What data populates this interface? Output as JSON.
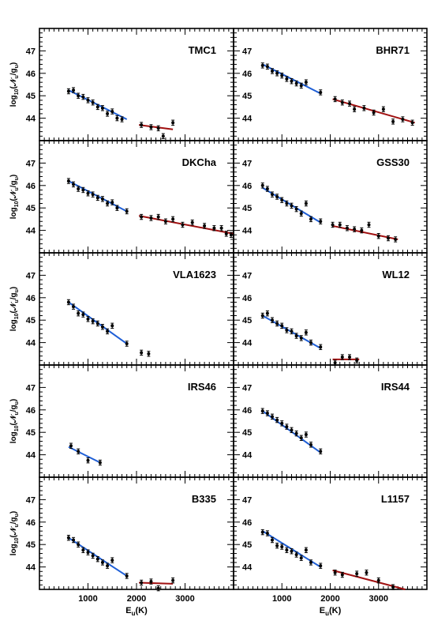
{
  "figure": {
    "ylabel_text": "log",
    "ylabel_sub": "10",
    "ylabel_rest": "(𝒩",
    "ylabel_u": "u",
    "ylabel_slash": "/g",
    "ylabel_u2": "u",
    "ylabel_close": ")",
    "xlabel_text": "E",
    "xlabel_sub": "u",
    "xlabel_rest": "(K)"
  },
  "colors": {
    "warm": "#1f5fd6",
    "hot": "#a01010",
    "axis": "#000000",
    "points": "#000000"
  },
  "chart_data": [
    {
      "type": "scatter",
      "title": "TMC1",
      "xlim": [
        0,
        4000
      ],
      "ylim": [
        43,
        48
      ],
      "yticks": [
        "44",
        "45",
        "46",
        "47"
      ],
      "xticks": [
        "1000",
        "2000",
        "3000"
      ],
      "points": [
        [
          600,
          45.2
        ],
        [
          700,
          45.25
        ],
        [
          800,
          45.0
        ],
        [
          900,
          44.95
        ],
        [
          1000,
          44.8
        ],
        [
          1100,
          44.7
        ],
        [
          1200,
          44.5
        ],
        [
          1300,
          44.45
        ],
        [
          1400,
          44.2
        ],
        [
          1500,
          44.3
        ],
        [
          1600,
          44.0
        ],
        [
          1700,
          43.95
        ],
        [
          2100,
          43.7
        ],
        [
          2300,
          43.6
        ],
        [
          2450,
          43.55
        ],
        [
          2550,
          43.2
        ],
        [
          2750,
          43.8
        ]
      ],
      "fits": [
        {
          "kind": "warm",
          "x": [
            600,
            1800
          ],
          "y": [
            45.25,
            43.95
          ]
        },
        {
          "kind": "hot",
          "x": [
            2050,
            2750
          ],
          "y": [
            43.7,
            43.5
          ]
        }
      ]
    },
    {
      "type": "scatter",
      "title": "BHR71",
      "xlim": [
        0,
        4000
      ],
      "ylim": [
        43,
        48
      ],
      "yticks": [
        "44",
        "45",
        "46",
        "47"
      ],
      "xticks": [
        "1000",
        "2000",
        "3000"
      ],
      "points": [
        [
          600,
          46.35
        ],
        [
          700,
          46.3
        ],
        [
          800,
          46.1
        ],
        [
          900,
          46.0
        ],
        [
          1000,
          45.9
        ],
        [
          1100,
          45.75
        ],
        [
          1200,
          45.65
        ],
        [
          1300,
          45.55
        ],
        [
          1400,
          45.45
        ],
        [
          1500,
          45.6
        ],
        [
          1800,
          45.15
        ],
        [
          2100,
          44.85
        ],
        [
          2250,
          44.7
        ],
        [
          2400,
          44.65
        ],
        [
          2500,
          44.4
        ],
        [
          2700,
          44.45
        ],
        [
          2900,
          44.25
        ],
        [
          3100,
          44.4
        ],
        [
          3300,
          43.85
        ],
        [
          3500,
          43.95
        ],
        [
          3700,
          43.8
        ]
      ],
      "fits": [
        {
          "kind": "warm",
          "x": [
            600,
            1800
          ],
          "y": [
            46.4,
            45.1
          ]
        },
        {
          "kind": "hot",
          "x": [
            2050,
            3750
          ],
          "y": [
            44.85,
            43.8
          ]
        }
      ]
    },
    {
      "type": "scatter",
      "title": "DKCha",
      "xlim": [
        0,
        4000
      ],
      "ylim": [
        43,
        48
      ],
      "yticks": [
        "44",
        "45",
        "46",
        "47"
      ],
      "xticks": [
        "1000",
        "2000",
        "3000"
      ],
      "points": [
        [
          600,
          46.2
        ],
        [
          700,
          46.05
        ],
        [
          800,
          45.85
        ],
        [
          900,
          45.8
        ],
        [
          1000,
          45.65
        ],
        [
          1100,
          45.6
        ],
        [
          1200,
          45.45
        ],
        [
          1300,
          45.4
        ],
        [
          1400,
          45.2
        ],
        [
          1500,
          45.25
        ],
        [
          1600,
          45.0
        ],
        [
          1800,
          44.85
        ],
        [
          2100,
          44.6
        ],
        [
          2300,
          44.55
        ],
        [
          2450,
          44.6
        ],
        [
          2600,
          44.4
        ],
        [
          2750,
          44.5
        ],
        [
          2950,
          44.25
        ],
        [
          3150,
          44.35
        ],
        [
          3400,
          44.2
        ],
        [
          3600,
          44.1
        ],
        [
          3750,
          44.1
        ],
        [
          3850,
          43.85
        ],
        [
          3950,
          43.8
        ]
      ],
      "fits": [
        {
          "kind": "warm",
          "x": [
            600,
            1800
          ],
          "y": [
            46.2,
            44.85
          ]
        },
        {
          "kind": "hot",
          "x": [
            2050,
            4000
          ],
          "y": [
            44.65,
            43.85
          ]
        }
      ]
    },
    {
      "type": "scatter",
      "title": "GSS30",
      "xlim": [
        0,
        4000
      ],
      "ylim": [
        43,
        48
      ],
      "yticks": [
        "44",
        "45",
        "46",
        "47"
      ],
      "xticks": [
        "1000",
        "2000",
        "3000"
      ],
      "points": [
        [
          600,
          46.0
        ],
        [
          700,
          45.85
        ],
        [
          800,
          45.6
        ],
        [
          900,
          45.5
        ],
        [
          1000,
          45.35
        ],
        [
          1100,
          45.2
        ],
        [
          1200,
          45.1
        ],
        [
          1300,
          44.95
        ],
        [
          1400,
          44.75
        ],
        [
          1500,
          45.2
        ],
        [
          1600,
          44.5
        ],
        [
          1800,
          44.4
        ],
        [
          2050,
          44.25
        ],
        [
          2200,
          44.25
        ],
        [
          2350,
          44.1
        ],
        [
          2500,
          44.05
        ],
        [
          2650,
          44.0
        ],
        [
          2800,
          44.25
        ],
        [
          3000,
          43.75
        ],
        [
          3200,
          43.65
        ],
        [
          3350,
          43.6
        ]
      ],
      "fits": [
        {
          "kind": "warm",
          "x": [
            600,
            1800
          ],
          "y": [
            45.9,
            44.35
          ]
        },
        {
          "kind": "hot",
          "x": [
            2050,
            3400
          ],
          "y": [
            44.2,
            43.6
          ]
        }
      ]
    },
    {
      "type": "scatter",
      "title": "VLA1623",
      "xlim": [
        0,
        4000
      ],
      "ylim": [
        43,
        48
      ],
      "yticks": [
        "44",
        "45",
        "46",
        "47"
      ],
      "xticks": [
        "1000",
        "2000",
        "3000"
      ],
      "points": [
        [
          600,
          45.8
        ],
        [
          700,
          45.6
        ],
        [
          800,
          45.3
        ],
        [
          900,
          45.25
        ],
        [
          1000,
          45.05
        ],
        [
          1100,
          44.95
        ],
        [
          1200,
          44.85
        ],
        [
          1300,
          44.7
        ],
        [
          1400,
          44.5
        ],
        [
          1500,
          44.75
        ],
        [
          1800,
          43.95
        ],
        [
          2100,
          43.55
        ],
        [
          2250,
          43.5
        ]
      ],
      "fits": [
        {
          "kind": "warm",
          "x": [
            600,
            1800
          ],
          "y": [
            45.8,
            43.95
          ]
        }
      ]
    },
    {
      "type": "scatter",
      "title": "WL12",
      "xlim": [
        0,
        4000
      ],
      "ylim": [
        43,
        48
      ],
      "yticks": [
        "44",
        "45",
        "46",
        "47"
      ],
      "xticks": [
        "1000",
        "2000",
        "3000"
      ],
      "points": [
        [
          600,
          45.2
        ],
        [
          700,
          45.3
        ],
        [
          800,
          45.0
        ],
        [
          900,
          44.85
        ],
        [
          1000,
          44.75
        ],
        [
          1100,
          44.55
        ],
        [
          1200,
          44.5
        ],
        [
          1300,
          44.3
        ],
        [
          1400,
          44.2
        ],
        [
          1500,
          44.45
        ],
        [
          1600,
          44.0
        ],
        [
          1800,
          43.8
        ],
        [
          2100,
          43.1
        ],
        [
          2250,
          43.35
        ],
        [
          2400,
          43.35
        ],
        [
          2550,
          43.2
        ]
      ],
      "fits": [
        {
          "kind": "warm",
          "x": [
            600,
            1800
          ],
          "y": [
            45.2,
            43.75
          ]
        },
        {
          "kind": "hot",
          "x": [
            2050,
            2600
          ],
          "y": [
            43.25,
            43.25
          ]
        }
      ]
    },
    {
      "type": "scatter",
      "title": "IRS46",
      "xlim": [
        0,
        4000
      ],
      "ylim": [
        43,
        48
      ],
      "yticks": [
        "44",
        "45",
        "46",
        "47"
      ],
      "xticks": [
        "1000",
        "2000",
        "3000"
      ],
      "points": [
        [
          650,
          44.4
        ],
        [
          800,
          44.15
        ],
        [
          1000,
          43.75
        ],
        [
          1250,
          43.65
        ]
      ],
      "fits": [
        {
          "kind": "warm",
          "x": [
            600,
            1250
          ],
          "y": [
            44.35,
            43.65
          ]
        }
      ]
    },
    {
      "type": "scatter",
      "title": "IRS44",
      "xlim": [
        0,
        4000
      ],
      "ylim": [
        43,
        48
      ],
      "yticks": [
        "44",
        "45",
        "46",
        "47"
      ],
      "xticks": [
        "1000",
        "2000",
        "3000"
      ],
      "points": [
        [
          600,
          45.95
        ],
        [
          700,
          45.85
        ],
        [
          800,
          45.7
        ],
        [
          900,
          45.55
        ],
        [
          1000,
          45.4
        ],
        [
          1100,
          45.25
        ],
        [
          1200,
          45.1
        ],
        [
          1300,
          44.95
        ],
        [
          1400,
          44.75
        ],
        [
          1500,
          44.9
        ],
        [
          1600,
          44.45
        ],
        [
          1800,
          44.15
        ]
      ],
      "fits": [
        {
          "kind": "warm",
          "x": [
            600,
            1800
          ],
          "y": [
            45.95,
            44.1
          ]
        }
      ]
    },
    {
      "type": "scatter",
      "title": "B335",
      "xlim": [
        0,
        4000
      ],
      "ylim": [
        43,
        48
      ],
      "yticks": [
        "44",
        "45",
        "46",
        "47"
      ],
      "xticks": [
        "1000",
        "2000",
        "3000"
      ],
      "points": [
        [
          600,
          45.3
        ],
        [
          700,
          45.2
        ],
        [
          800,
          45.0
        ],
        [
          900,
          44.75
        ],
        [
          1000,
          44.65
        ],
        [
          1100,
          44.5
        ],
        [
          1200,
          44.35
        ],
        [
          1300,
          44.2
        ],
        [
          1400,
          44.05
        ],
        [
          1500,
          44.3
        ],
        [
          1800,
          43.6
        ],
        [
          2100,
          43.3
        ],
        [
          2300,
          43.35
        ],
        [
          2450,
          43.05
        ],
        [
          2750,
          43.4
        ]
      ],
      "fits": [
        {
          "kind": "warm",
          "x": [
            600,
            1800
          ],
          "y": [
            45.3,
            43.6
          ]
        },
        {
          "kind": "hot",
          "x": [
            2050,
            2750
          ],
          "y": [
            43.3,
            43.25
          ]
        }
      ]
    },
    {
      "type": "scatter",
      "title": "L1157",
      "xlim": [
        0,
        4000
      ],
      "ylim": [
        43,
        48
      ],
      "yticks": [
        "44",
        "45",
        "46",
        "47"
      ],
      "xticks": [
        "1000",
        "2000",
        "3000"
      ],
      "points": [
        [
          600,
          45.55
        ],
        [
          700,
          45.5
        ],
        [
          800,
          45.2
        ],
        [
          900,
          44.95
        ],
        [
          1000,
          44.9
        ],
        [
          1100,
          44.75
        ],
        [
          1200,
          44.7
        ],
        [
          1300,
          44.55
        ],
        [
          1400,
          44.4
        ],
        [
          1500,
          44.75
        ],
        [
          1600,
          44.2
        ],
        [
          1800,
          44.05
        ],
        [
          2100,
          43.75
        ],
        [
          2250,
          43.65
        ],
        [
          2550,
          43.7
        ],
        [
          2750,
          43.75
        ],
        [
          3000,
          43.4
        ],
        [
          3300,
          43.1
        ]
      ],
      "fits": [
        {
          "kind": "warm",
          "x": [
            600,
            1800
          ],
          "y": [
            45.6,
            44.0
          ]
        },
        {
          "kind": "hot",
          "x": [
            2050,
            3550
          ],
          "y": [
            43.85,
            43.0
          ]
        }
      ]
    }
  ]
}
